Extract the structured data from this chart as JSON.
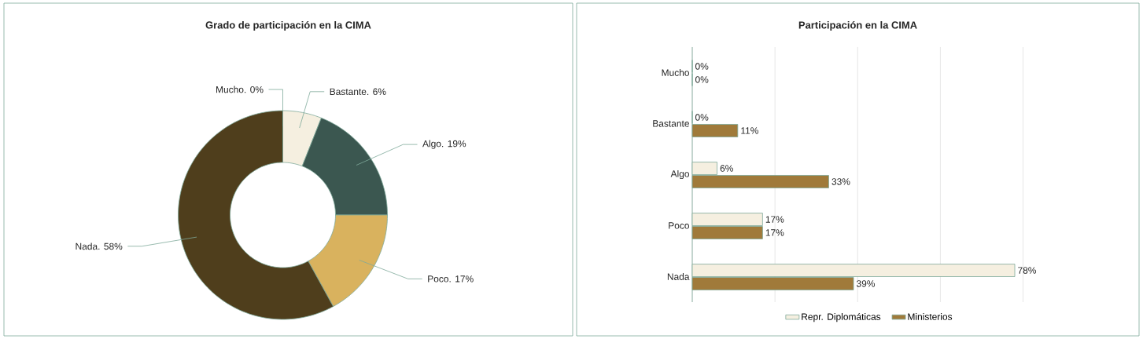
{
  "chart_data": [
    {
      "type": "donut",
      "title": "Grado de participación en la CIMA",
      "categories": [
        "Mucho.",
        "Bastante.",
        "Algo.",
        "Poco.",
        "Nada."
      ],
      "values": [
        0,
        6,
        19,
        17,
        58
      ],
      "colors": [
        "#a07a3a",
        "#f5efe0",
        "#3b5750",
        "#d9b25e",
        "#4f3e1c"
      ],
      "value_labels": [
        "0%",
        "6%",
        "19%",
        "17%",
        "58%"
      ]
    },
    {
      "type": "bar",
      "orientation": "horizontal",
      "title": "Participación en la CIMA",
      "categories": [
        "Mucho",
        "Bastante",
        "Algo",
        "Poco",
        "Nada"
      ],
      "series": [
        {
          "name": "Repr. Diplomáticas",
          "color": "#f5efe0",
          "values": [
            0,
            0,
            6,
            17,
            78
          ],
          "value_labels": [
            "0%",
            "0%",
            "6%",
            "17%",
            "78%"
          ]
        },
        {
          "name": "Ministerios",
          "color": "#a07a3a",
          "values": [
            0,
            11,
            33,
            17,
            39
          ],
          "value_labels": [
            "0%",
            "11%",
            "33%",
            "17%",
            "39%"
          ]
        }
      ],
      "tick_labels": "y",
      "grid": "x",
      "legend": "bottom"
    }
  ]
}
